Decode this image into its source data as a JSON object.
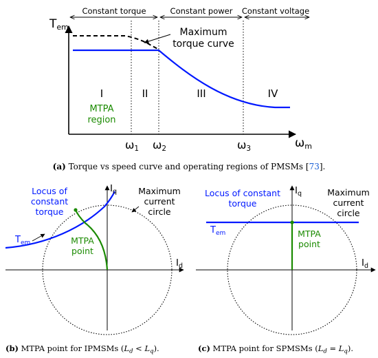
{
  "panel_a": {
    "axis_y": "T",
    "axis_y_sub": "em",
    "axis_x": "ω",
    "axis_x_sub": "m",
    "regions_top": [
      "Constant torque",
      "Constant power",
      "Constant voltage"
    ],
    "region_numerals": [
      "I",
      "II",
      "III",
      "IV"
    ],
    "mtpa_region": [
      "MTPA",
      "region"
    ],
    "max_torque_label": [
      "Maximum",
      "torque curve"
    ],
    "omega_ticks": [
      {
        "base": "ω",
        "sub": "1"
      },
      {
        "base": "ω",
        "sub": "2"
      },
      {
        "base": "ω",
        "sub": "3"
      }
    ],
    "caption": {
      "tag": "(a)",
      "text": " Torque vs speed curve and operating regions of PMSMs [",
      "ref": "73",
      "end": "]."
    }
  },
  "panel_b": {
    "locus_label": [
      "Locus of",
      "constant",
      "torque"
    ],
    "tem_base": "T",
    "tem_sub": "em",
    "max_current": [
      "Maximum",
      "current",
      "circle"
    ],
    "mtpa_point": [
      "MTPA",
      "point"
    ],
    "axis_q": "I",
    "axis_q_sub": "q",
    "axis_d": "I",
    "axis_d_sub": "d",
    "caption": {
      "tag": "(b)",
      "text": " MTPA point for IPMSMs (",
      "math": "L",
      "math_sub1": "d",
      "rel": " < ",
      "math2": "L",
      "math_sub2": "q",
      "end": ")."
    }
  },
  "panel_c": {
    "locus_label": [
      "Locus of constant",
      "torque"
    ],
    "tem_base": "T",
    "tem_sub": "em",
    "max_current": [
      "Maximum",
      "current",
      "circle"
    ],
    "mtpa_point": [
      "MTPA",
      "point"
    ],
    "axis_q": "I",
    "axis_q_sub": "q",
    "axis_d": "I",
    "axis_d_sub": "d",
    "caption": {
      "tag": "(c)",
      "text": " MTPA point for SPMSMs (",
      "math": "L",
      "math_sub1": "d",
      "rel": " = ",
      "math2": "L",
      "math_sub2": "q",
      "end": ")."
    }
  },
  "colors": {
    "curve": "#0018ff",
    "mtpa": "#1a8a00",
    "ink": "#000000",
    "cite": "#1a5fd6"
  }
}
